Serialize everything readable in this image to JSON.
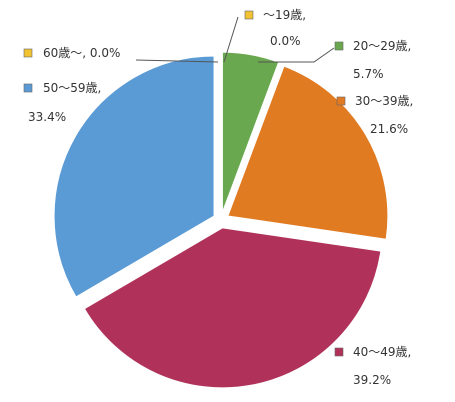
{
  "chart_data": {
    "type": "pie",
    "title": "",
    "categories": [
      "～19歳",
      "20～29歳",
      "30～39歳",
      "40～49歳",
      "50～59歳",
      "60歳～"
    ],
    "values": [
      0.0,
      5.7,
      21.6,
      39.2,
      33.4,
      0.0
    ],
    "value_labels": [
      "0.0%",
      "5.7%",
      "21.6%",
      "39.2%",
      "33.4%",
      "0.0%"
    ],
    "colors": [
      "#f1c232",
      "#6aa84f",
      "#e07b22",
      "#b0325a",
      "#5b9bd5",
      "#f1c232"
    ],
    "exploded": true,
    "legend": "none",
    "data_labels": "outside-with-leader-lines"
  }
}
